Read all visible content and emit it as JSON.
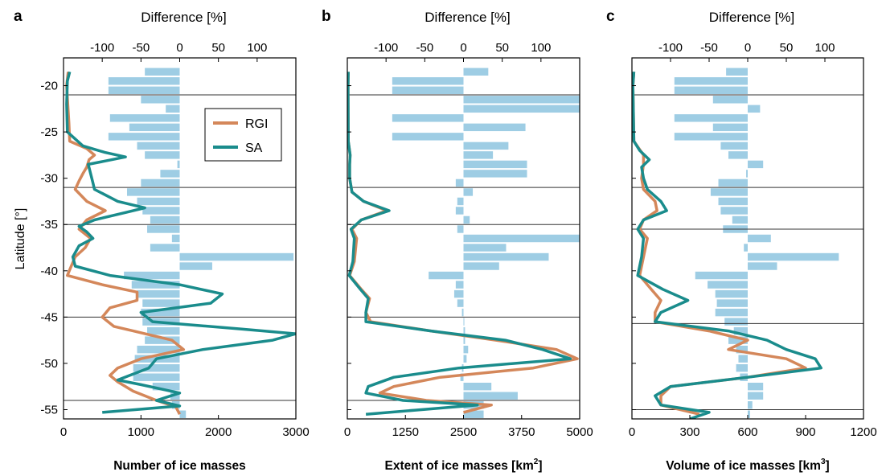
{
  "colors": {
    "rgi": "#d4875a",
    "sa": "#1a8c8c",
    "bar": "#9ecde4",
    "frame": "#000000"
  },
  "ylabel": "Latitude [°]",
  "legend": {
    "rgi": "RGI",
    "sa": "SA"
  },
  "chart_data": [
    {
      "type": "line",
      "panel": "a",
      "top_axis_title": "Difference [%]",
      "top_ticks": [
        -100,
        -50,
        0,
        50,
        100
      ],
      "top_range": [
        -150,
        150
      ],
      "xlabel": "Number of ice masses",
      "xlabel_sup": "",
      "xlim": [
        0,
        3000
      ],
      "x_ticks": [
        0,
        1000,
        2000,
        3000
      ],
      "ylim": [
        -56,
        -17
      ],
      "y_ticks": [
        -20,
        -25,
        -30,
        -35,
        -40,
        -45,
        -50,
        -55
      ],
      "show_y_ticklabels": true,
      "region_boundaries": [
        -21,
        -31,
        -35,
        -45,
        -54
      ],
      "series": [
        {
          "name": "RGI",
          "lat": [
            -18.5,
            -20,
            -24,
            -26,
            -26.8,
            -27.5,
            -28,
            -28.8,
            -29.5,
            -30.3,
            -31.2,
            -32.5,
            -33.5,
            -34.5,
            -35.5,
            -36.5,
            -37.5,
            -38.5,
            -39.5,
            -40.5,
            -41.5,
            -42.3,
            -43.2,
            -44,
            -45,
            -46,
            -46.5,
            -47.5,
            -48.5,
            -49.5,
            -50.5,
            -51.3,
            -52,
            -53,
            -54,
            -54.7,
            -55.5
          ],
          "x": [
            60,
            40,
            70,
            80,
            300,
            400,
            330,
            300,
            250,
            200,
            150,
            300,
            540,
            300,
            200,
            350,
            280,
            150,
            100,
            50,
            500,
            950,
            950,
            600,
            500,
            650,
            900,
            1400,
            1550,
            1000,
            700,
            600,
            700,
            900,
            1200,
            1450,
            1500
          ]
        },
        {
          "name": "SA",
          "lat": [
            -18.5,
            -19.5,
            -22,
            -25,
            -26.5,
            -27.2,
            -27.7,
            -28.5,
            -29.5,
            -30.5,
            -31.2,
            -32.5,
            -33.2,
            -33.7,
            -34.5,
            -35.2,
            -35.8,
            -36.5,
            -37.3,
            -38.5,
            -39.5,
            -40.5,
            -41.5,
            -42.5,
            -43.5,
            -44.5,
            -45.5,
            -46.3,
            -46.8,
            -47.5,
            -48.5,
            -49.5,
            -50.5,
            -51.8,
            -52.3,
            -53.2,
            -54,
            -54.6,
            -55.3
          ],
          "x": [
            80,
            50,
            40,
            50,
            250,
            530,
            800,
            320,
            350,
            380,
            400,
            700,
            1050,
            800,
            400,
            200,
            300,
            380,
            200,
            120,
            150,
            600,
            1500,
            2050,
            1900,
            1000,
            1150,
            2300,
            3000,
            2700,
            1800,
            1200,
            1100,
            700,
            1000,
            1500,
            1200,
            1500,
            500
          ]
        }
      ],
      "bars": [
        {
          "lat": -18.5,
          "diff": -45
        },
        {
          "lat": -19.5,
          "diff": -92
        },
        {
          "lat": -20.5,
          "diff": -92
        },
        {
          "lat": -21.5,
          "diff": -50
        },
        {
          "lat": -22.5,
          "diff": -18
        },
        {
          "lat": -23.5,
          "diff": -90
        },
        {
          "lat": -24.5,
          "diff": -65
        },
        {
          "lat": -25.5,
          "diff": -92
        },
        {
          "lat": -26.5,
          "diff": -55
        },
        {
          "lat": -27.5,
          "diff": -45
        },
        {
          "lat": -28.5,
          "diff": -3
        },
        {
          "lat": -29.5,
          "diff": -25
        },
        {
          "lat": -30.5,
          "diff": -50
        },
        {
          "lat": -31.5,
          "diff": -68
        },
        {
          "lat": -32.5,
          "diff": -55
        },
        {
          "lat": -33.5,
          "diff": -48
        },
        {
          "lat": -34.5,
          "diff": -38
        },
        {
          "lat": -35.5,
          "diff": -42
        },
        {
          "lat": -36.5,
          "diff": -10
        },
        {
          "lat": -37.5,
          "diff": -38
        },
        {
          "lat": -38.5,
          "diff": 147
        },
        {
          "lat": -39.5,
          "diff": 42
        },
        {
          "lat": -40.5,
          "diff": -72
        },
        {
          "lat": -41.5,
          "diff": -62
        },
        {
          "lat": -42.5,
          "diff": -55
        },
        {
          "lat": -43.5,
          "diff": -48
        },
        {
          "lat": -44.5,
          "diff": -50
        },
        {
          "lat": -45.5,
          "diff": -48
        },
        {
          "lat": -46.5,
          "diff": -42
        },
        {
          "lat": -47.5,
          "diff": -45
        },
        {
          "lat": -48.5,
          "diff": -55
        },
        {
          "lat": -49.5,
          "diff": -58
        },
        {
          "lat": -50.5,
          "diff": -60
        },
        {
          "lat": -51.5,
          "diff": -60
        },
        {
          "lat": -52.5,
          "diff": -35
        },
        {
          "lat": -53.5,
          "diff": -12
        },
        {
          "lat": -54.5,
          "diff": -10
        },
        {
          "lat": -55.5,
          "diff": 8
        }
      ]
    },
    {
      "type": "line",
      "panel": "b",
      "top_axis_title": "Difference [%]",
      "top_ticks": [
        -100,
        -50,
        0,
        50,
        100
      ],
      "top_range": [
        -150,
        150
      ],
      "xlabel": "Extent of ice masses [km",
      "xlabel_sup": "2",
      "xlabel_tail": "]",
      "xlim": [
        0,
        5000
      ],
      "x_ticks": [
        0,
        1250,
        2500,
        3750,
        5000
      ],
      "ylim": [
        -56,
        -17
      ],
      "show_y_ticklabels": false,
      "region_boundaries": [
        -21,
        -31,
        -35,
        -45,
        -54
      ],
      "series": [
        {
          "name": "RGI",
          "lat": [
            -18.5,
            -20,
            -26,
            -27.5,
            -28.5,
            -30,
            -31.5,
            -32.5,
            -33.5,
            -34.5,
            -35.5,
            -36.5,
            -39,
            -40.5,
            -42,
            -43,
            -44.5,
            -45.5,
            -46.5,
            -47.5,
            -48.5,
            -49.5,
            -50.5,
            -51.5,
            -52.5,
            -53.2,
            -54,
            -54.5,
            -55.3
          ],
          "x": [
            20,
            15,
            20,
            60,
            50,
            50,
            100,
            350,
            850,
            300,
            100,
            200,
            150,
            50,
            300,
            480,
            400,
            500,
            1800,
            3200,
            4500,
            4950,
            4000,
            2000,
            1000,
            700,
            1700,
            3100,
            2500
          ]
        },
        {
          "name": "SA",
          "lat": [
            -18.5,
            -20,
            -26,
            -27.5,
            -28.5,
            -30,
            -31.5,
            -32.5,
            -33.5,
            -34.5,
            -35.5,
            -36.5,
            -39,
            -40.5,
            -42,
            -43,
            -44.5,
            -45.5,
            -46.5,
            -47.5,
            -48.5,
            -49.5,
            -50.5,
            -51.5,
            -52.5,
            -53.2,
            -54,
            -54.5,
            -55.5
          ],
          "x": [
            20,
            15,
            20,
            60,
            50,
            50,
            100,
            350,
            900,
            300,
            80,
            150,
            120,
            40,
            280,
            450,
            400,
            400,
            1800,
            3400,
            4200,
            4800,
            2400,
            1000,
            450,
            400,
            1200,
            2800,
            400
          ]
        }
      ],
      "bars": [
        {
          "lat": -18.5,
          "diff": 32
        },
        {
          "lat": -19.5,
          "diff": -92
        },
        {
          "lat": -20.5,
          "diff": -92
        },
        {
          "lat": -21.5,
          "diff": 150
        },
        {
          "lat": -22.5,
          "diff": 150
        },
        {
          "lat": -23.5,
          "diff": -92
        },
        {
          "lat": -24.5,
          "diff": 80
        },
        {
          "lat": -25.5,
          "diff": -92
        },
        {
          "lat": -26.5,
          "diff": 58
        },
        {
          "lat": -27.5,
          "diff": 38
        },
        {
          "lat": -28.5,
          "diff": 82
        },
        {
          "lat": -29.5,
          "diff": 82
        },
        {
          "lat": -30.5,
          "diff": -10
        },
        {
          "lat": -31.5,
          "diff": 12
        },
        {
          "lat": -32.5,
          "diff": -8
        },
        {
          "lat": -33.5,
          "diff": -10
        },
        {
          "lat": -34.5,
          "diff": 8
        },
        {
          "lat": -35.5,
          "diff": -8
        },
        {
          "lat": -36.5,
          "diff": 150
        },
        {
          "lat": -37.5,
          "diff": 55
        },
        {
          "lat": -38.5,
          "diff": 110
        },
        {
          "lat": -39.5,
          "diff": 46
        },
        {
          "lat": -40.5,
          "diff": -45
        },
        {
          "lat": -41.5,
          "diff": -10
        },
        {
          "lat": -42.5,
          "diff": -12
        },
        {
          "lat": -43.5,
          "diff": -8
        },
        {
          "lat": -44.5,
          "diff": -2
        },
        {
          "lat": -45.5,
          "diff": 0.5
        },
        {
          "lat": -46.5,
          "diff": 2
        },
        {
          "lat": -47.5,
          "diff": 2
        },
        {
          "lat": -48.5,
          "diff": 6
        },
        {
          "lat": -49.5,
          "diff": 4
        },
        {
          "lat": -50.5,
          "diff": -2
        },
        {
          "lat": -51.5,
          "diff": -4
        },
        {
          "lat": -52.5,
          "diff": 36
        },
        {
          "lat": -53.5,
          "diff": 70
        },
        {
          "lat": -54.5,
          "diff": 26
        },
        {
          "lat": -55.5,
          "diff": 26
        }
      ]
    },
    {
      "type": "line",
      "panel": "c",
      "top_axis_title": "Difference [%]",
      "top_ticks": [
        -100,
        -50,
        0,
        50,
        100
      ],
      "top_range": [
        -150,
        150
      ],
      "xlabel": "Volume of ice masses [km",
      "xlabel_sup": "3",
      "xlabel_tail": "]",
      "xlim": [
        0,
        1200
      ],
      "x_ticks": [
        0,
        300,
        600,
        900,
        1200
      ],
      "ylim": [
        -56,
        -17
      ],
      "show_y_ticklabels": false,
      "region_boundaries": [
        -21,
        -31,
        -35.5,
        -45.7,
        -55
      ],
      "series": [
        {
          "name": "RGI",
          "lat": [
            -18.5,
            -20,
            -26,
            -27.5,
            -28.5,
            -30,
            -31.2,
            -32.5,
            -33.5,
            -34.5,
            -35.5,
            -36.5,
            -38.5,
            -40.5,
            -42,
            -43.2,
            -44.5,
            -45.5,
            -46.5,
            -47.5,
            -48.5,
            -49.5,
            -50.5,
            -51.5,
            -52.5,
            -53.5,
            -54.5,
            -55.5
          ],
          "x": [
            10,
            5,
            10,
            60,
            60,
            50,
            60,
            120,
            130,
            60,
            40,
            80,
            60,
            40,
            100,
            150,
            120,
            120,
            400,
            600,
            500,
            800,
            900,
            600,
            200,
            150,
            150,
            350
          ]
        },
        {
          "name": "SA",
          "lat": [
            -18.5,
            -20,
            -26,
            -27,
            -28,
            -28.8,
            -30,
            -31.2,
            -32.5,
            -33.5,
            -34.5,
            -35.5,
            -36.5,
            -38.5,
            -40.5,
            -42,
            -43.2,
            -44.5,
            -45.5,
            -46.5,
            -47.5,
            -48.5,
            -49.5,
            -50.5,
            -51.5,
            -52.5,
            -53.5,
            -54.5,
            -55.3,
            -56
          ],
          "x": [
            10,
            5,
            10,
            40,
            90,
            50,
            60,
            80,
            150,
            180,
            60,
            30,
            60,
            50,
            30,
            160,
            290,
            150,
            120,
            500,
            700,
            800,
            950,
            980,
            600,
            200,
            120,
            150,
            400,
            300
          ]
        }
      ],
      "bars": [
        {
          "lat": -18.5,
          "diff": -28
        },
        {
          "lat": -19.5,
          "diff": -95
        },
        {
          "lat": -20.5,
          "diff": -95
        },
        {
          "lat": -21.5,
          "diff": -45
        },
        {
          "lat": -22.5,
          "diff": 16
        },
        {
          "lat": -23.5,
          "diff": -95
        },
        {
          "lat": -24.5,
          "diff": -45
        },
        {
          "lat": -25.5,
          "diff": -95
        },
        {
          "lat": -26.5,
          "diff": -35
        },
        {
          "lat": -27.5,
          "diff": -25
        },
        {
          "lat": -28.5,
          "diff": 20
        },
        {
          "lat": -29.5,
          "diff": -2
        },
        {
          "lat": -30.5,
          "diff": -38
        },
        {
          "lat": -31.5,
          "diff": -48
        },
        {
          "lat": -32.5,
          "diff": -38
        },
        {
          "lat": -33.5,
          "diff": -35
        },
        {
          "lat": -34.5,
          "diff": -20
        },
        {
          "lat": -35.5,
          "diff": -32
        },
        {
          "lat": -36.5,
          "diff": 30
        },
        {
          "lat": -37.5,
          "diff": -5
        },
        {
          "lat": -38.5,
          "diff": 118
        },
        {
          "lat": -39.5,
          "diff": 38
        },
        {
          "lat": -40.5,
          "diff": -68
        },
        {
          "lat": -41.5,
          "diff": -52
        },
        {
          "lat": -42.5,
          "diff": -42
        },
        {
          "lat": -43.5,
          "diff": -40
        },
        {
          "lat": -44.5,
          "diff": -42
        },
        {
          "lat": -45.5,
          "diff": -30
        },
        {
          "lat": -46.5,
          "diff": -18
        },
        {
          "lat": -47.5,
          "diff": -25
        },
        {
          "lat": -48.5,
          "diff": -15
        },
        {
          "lat": -49.5,
          "diff": -12
        },
        {
          "lat": -50.5,
          "diff": -15
        },
        {
          "lat": -51.5,
          "diff": -10
        },
        {
          "lat": -52.5,
          "diff": 20
        },
        {
          "lat": -53.5,
          "diff": 20
        },
        {
          "lat": -54.5,
          "diff": 6
        },
        {
          "lat": -55.5,
          "diff": 3
        }
      ]
    }
  ]
}
